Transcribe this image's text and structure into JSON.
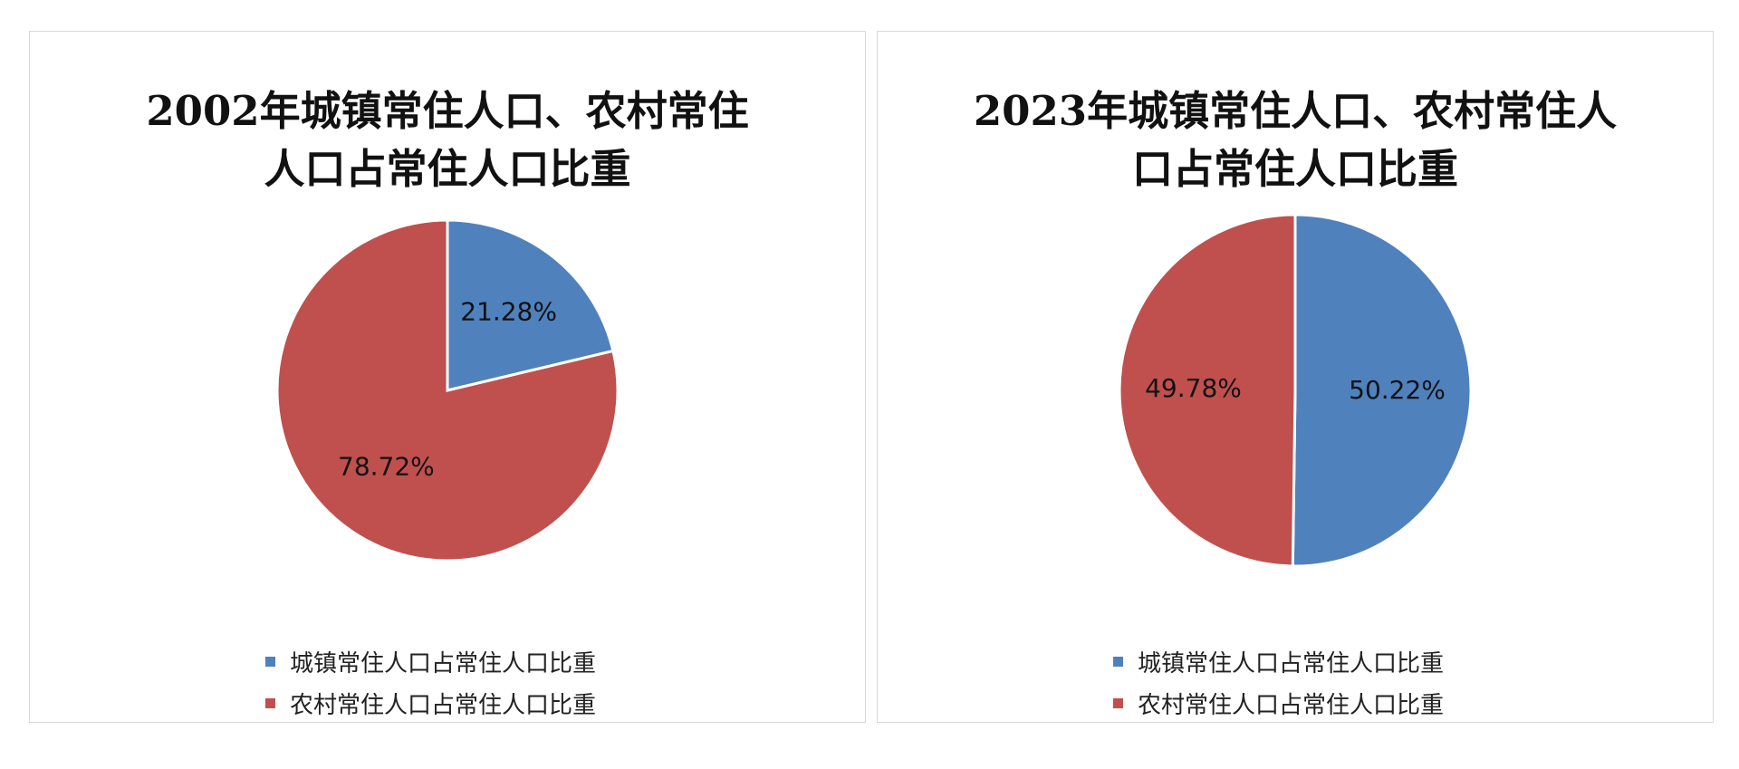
{
  "chart_data": [
    {
      "type": "pie",
      "title": "2002年城镇常住人口、农村常住人口占常住人口比重",
      "title_lines": [
        "2002年城镇常住人口、农村常住",
        "人口占常住人口比重"
      ],
      "categories": [
        "城镇常住人口占常住人口比重",
        "农村常住人口占常住人口比重"
      ],
      "values": [
        21.28,
        78.72
      ],
      "data_labels": [
        "21.28%",
        "78.72%"
      ],
      "colors": [
        "#4f81bd",
        "#c0504d"
      ],
      "legend_position": "bottom"
    },
    {
      "type": "pie",
      "title": "2023年城镇常住人口、农村常住人口占常住人口比重",
      "title_lines": [
        "2023年城镇常住人口、农村常住人",
        "口占常住人口比重"
      ],
      "categories": [
        "城镇常住人口占常住人口比重",
        "农村常住人口占常住人口比重"
      ],
      "values": [
        50.22,
        49.78
      ],
      "data_labels": [
        "50.22%",
        "49.78%"
      ],
      "colors": [
        "#4f81bd",
        "#c0504d"
      ],
      "legend_position": "bottom"
    }
  ]
}
